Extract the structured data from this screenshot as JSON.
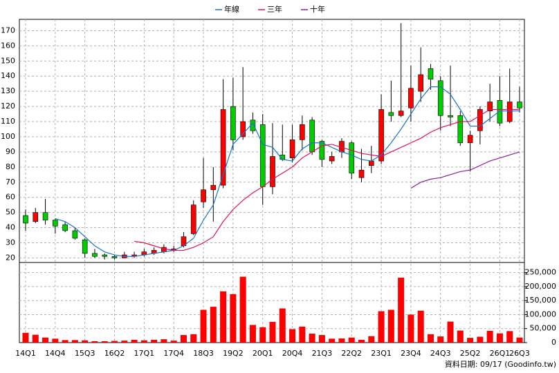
{
  "chart_data": {
    "type": "candlestick",
    "legend": "top",
    "footnote": "資料日期: 09/17  (Goodinfo.tw)",
    "categories": [
      "14Q1",
      null,
      null,
      "14Q4",
      null,
      null,
      "15Q3",
      null,
      null,
      "16Q2",
      null,
      null,
      "17Q1",
      null,
      null,
      "17Q4",
      null,
      null,
      "18Q3",
      null,
      null,
      "19Q2",
      null,
      null,
      "20Q1",
      null,
      null,
      "20Q4",
      null,
      null,
      "21Q3",
      null,
      null,
      "22Q2",
      null,
      null,
      "23Q1",
      null,
      null,
      "23Q4",
      null,
      null,
      "24Q3",
      null,
      null,
      "25Q2",
      null,
      null,
      "26Q1",
      null,
      "26Q3"
    ],
    "open": [
      48,
      44,
      50,
      45,
      42,
      38,
      32,
      23,
      22,
      21,
      20,
      21,
      22,
      23,
      24,
      25,
      28,
      36,
      57,
      65,
      68,
      120,
      100,
      111,
      108,
      67,
      88,
      86,
      98,
      111,
      97,
      84,
      90,
      96,
      73,
      81,
      84,
      116,
      114,
      119,
      130,
      145,
      137,
      114,
      114,
      96,
      104,
      117,
      124,
      110,
      123
    ],
    "high": [
      52,
      53,
      59,
      46,
      44,
      40,
      33,
      26,
      23,
      22,
      24,
      24,
      26,
      27,
      29,
      28,
      37,
      58,
      86,
      80,
      138,
      139,
      146,
      116,
      115,
      109,
      108,
      108,
      114,
      113,
      98,
      90,
      99,
      97,
      92,
      94,
      128,
      137,
      175,
      147,
      159,
      148,
      140,
      147,
      117,
      104,
      120,
      135,
      140,
      145,
      133
    ],
    "low": [
      38,
      43,
      42,
      36,
      37,
      32,
      20,
      20,
      19,
      19,
      20,
      20,
      21,
      22,
      23,
      24,
      27,
      35,
      53,
      44,
      66,
      91,
      98,
      102,
      55,
      62,
      84,
      83,
      91,
      88,
      80,
      82,
      86,
      72,
      70,
      76,
      82,
      110,
      113,
      110,
      123,
      131,
      104,
      107,
      94,
      77,
      95,
      110,
      107,
      109,
      116
    ],
    "close": [
      43,
      50,
      45,
      41,
      38,
      33,
      23,
      21,
      21,
      20,
      22,
      22,
      24,
      25,
      27,
      26,
      34,
      55,
      65,
      68,
      118,
      98,
      110,
      104,
      67,
      87,
      85,
      98,
      108,
      90,
      85,
      87,
      97,
      76,
      78,
      84,
      118,
      114,
      117,
      132,
      141,
      138,
      114,
      113,
      96,
      101,
      118,
      123,
      109,
      123,
      119
    ],
    "volume": [
      35000,
      28000,
      18000,
      14000,
      9000,
      9000,
      8000,
      5000,
      5000,
      6000,
      7000,
      10000,
      8000,
      10000,
      12000,
      7000,
      27000,
      30000,
      117000,
      128000,
      183000,
      173000,
      235000,
      63000,
      55000,
      74000,
      122000,
      48000,
      57000,
      32000,
      27000,
      14000,
      15000,
      18000,
      10000,
      23000,
      112000,
      117000,
      232000,
      100000,
      114000,
      30000,
      22000,
      75000,
      43000,
      17000,
      21000,
      42000,
      33000,
      41000,
      18000
    ],
    "up_color": "#ff0000",
    "down_color": "#00cc00",
    "volume_color": "#ff0000",
    "series": [
      {
        "name": "年線",
        "color": "#1874cd",
        "values": [
          null,
          null,
          null,
          46,
          44,
          40,
          34,
          28,
          24,
          22,
          21,
          21,
          22,
          23,
          24,
          25,
          28,
          33,
          45,
          55,
          75,
          95,
          102,
          109,
          95,
          93,
          85,
          84,
          92,
          96,
          96,
          93,
          90,
          88,
          85,
          84,
          88,
          96,
          105,
          115,
          125,
          133,
          133,
          128,
          118,
          107,
          107,
          112,
          117,
          117,
          117
        ]
      },
      {
        "name": "三年",
        "color": "#e0105a",
        "values": [
          null,
          null,
          null,
          null,
          null,
          null,
          null,
          null,
          null,
          null,
          null,
          31,
          30,
          28,
          26,
          25,
          25,
          27,
          30,
          34,
          44,
          52,
          58,
          63,
          67,
          72,
          76,
          80,
          86,
          90,
          94,
          95,
          93,
          91,
          89,
          88,
          87,
          90,
          93,
          96,
          99,
          103,
          106,
          108,
          110,
          110,
          114,
          118,
          118,
          118,
          118
        ]
      },
      {
        "name": "十年",
        "color": "#8b1a9a",
        "values": [
          null,
          null,
          null,
          null,
          null,
          null,
          null,
          null,
          null,
          null,
          null,
          null,
          null,
          null,
          null,
          null,
          null,
          null,
          null,
          null,
          null,
          null,
          null,
          null,
          null,
          null,
          null,
          null,
          null,
          null,
          null,
          null,
          null,
          null,
          null,
          null,
          null,
          null,
          null,
          66,
          70,
          72,
          73,
          75,
          77,
          78,
          81,
          84,
          86,
          88,
          90
        ]
      }
    ],
    "ylim": [
      17,
      177.5
    ],
    "yticks": [
      20,
      30,
      40,
      50,
      60,
      70,
      80,
      90,
      100,
      110,
      120,
      130,
      140,
      150,
      160,
      170
    ],
    "y2lim": [
      0,
      286000
    ],
    "y2ticks": [
      0,
      {
        "value": 50000,
        "label": "50,000"
      },
      {
        "value": 100000,
        "label": "100,000"
      },
      {
        "value": 150000,
        "label": "150,000"
      },
      {
        "value": 200000,
        "label": "200,000"
      },
      {
        "value": 250000,
        "label": "250,000"
      }
    ],
    "grid": true
  }
}
